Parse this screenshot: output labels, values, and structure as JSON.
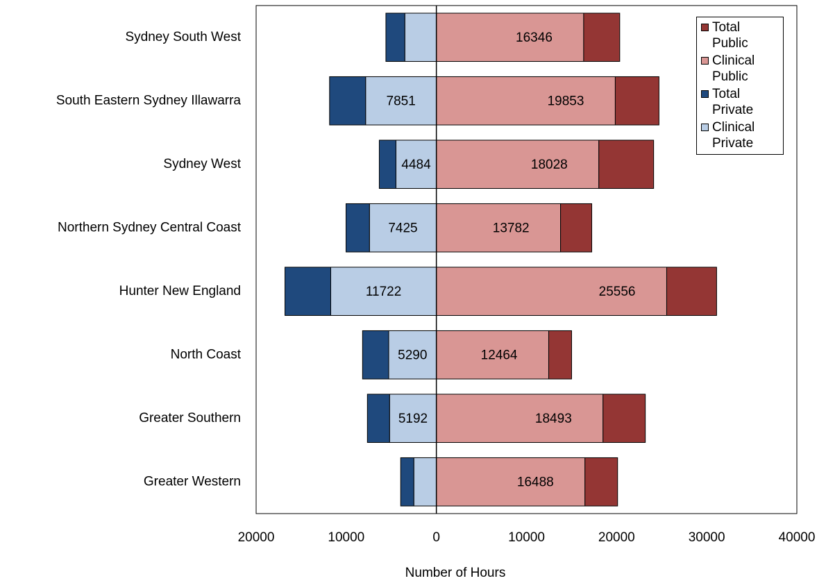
{
  "chart_data": {
    "type": "bar",
    "orientation": "horizontal",
    "stacked": true,
    "x_label": "Number of Hours",
    "categories": [
      "Sydney South West",
      "South Eastern Sydney Illawarra",
      "Sydney West",
      "Northern Sydney Central Coast",
      "Hunter New England",
      "North Coast",
      "Greater Southern",
      "Greater Western"
    ],
    "series": [
      {
        "name": "Total Public",
        "color": "#943634",
        "values": [
          4000,
          4850,
          6080,
          3460,
          5540,
          2540,
          4690,
          3620
        ]
      },
      {
        "name": "Clinical Public",
        "color": "#d99694",
        "values": [
          16346,
          19853,
          18028,
          13782,
          25556,
          12464,
          18493,
          16488
        ],
        "value_labels": [
          "16346",
          "19853",
          "18028",
          "13782",
          "25556",
          "12464",
          "18493",
          "16488"
        ]
      },
      {
        "name": "Total Private",
        "color": "#1f497d",
        "values": [
          -2100,
          -4000,
          -1850,
          -2600,
          -5080,
          -2900,
          -2460,
          -1460
        ]
      },
      {
        "name": "Clinical Private",
        "color": "#b9cde5",
        "values": [
          -3500,
          -7851,
          -4484,
          -7425,
          -11722,
          -5290,
          -5192,
          -2500
        ],
        "value_labels": [
          null,
          "7851",
          "4484",
          "7425",
          "11722",
          "5290",
          "5192",
          null
        ]
      }
    ],
    "xlim": [
      -20000,
      40000
    ],
    "xticks": [
      {
        "value": -20000,
        "label": "20000"
      },
      {
        "value": -10000,
        "label": "10000"
      },
      0,
      10000,
      20000,
      30000,
      40000
    ],
    "legend": "top-right"
  }
}
